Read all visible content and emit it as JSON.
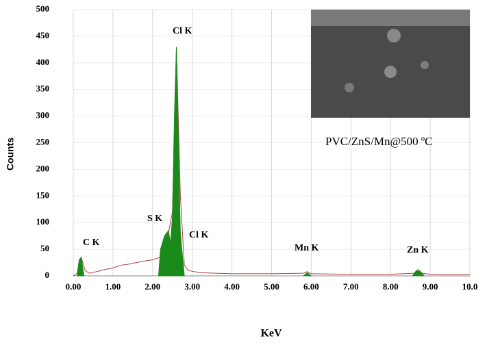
{
  "chart_data": {
    "type": "line",
    "x_label": "KeV",
    "y_label": "Counts",
    "annotations": [
      "Cl  K",
      "S  K",
      "Cl  K",
      "C  K",
      "Mn K",
      "Zn  K",
      "PVC/ZnS/Mn@500 ºC"
    ],
    "xlim": [
      0,
      10
    ],
    "ylim": [
      0,
      500
    ],
    "xticks": [
      {
        "value": 0,
        "label": "0.00"
      },
      {
        "value": 1,
        "label": "1.00"
      },
      {
        "value": 2,
        "label": "2.00"
      },
      {
        "value": 3,
        "label": "3.00"
      },
      {
        "value": 4,
        "label": "4.00"
      },
      {
        "value": 5,
        "label": "5.00"
      },
      {
        "value": 6,
        "label": "6.00"
      },
      {
        "value": 7,
        "label": "7.00"
      },
      {
        "value": 8,
        "label": "8.00"
      },
      {
        "value": 9,
        "label": "9.00"
      },
      {
        "value": 10,
        "label": "10.0"
      }
    ],
    "yticks": [
      0,
      50,
      100,
      150,
      200,
      250,
      300,
      350,
      400,
      450,
      500
    ],
    "grid": true,
    "series": [
      {
        "color": "#b04040",
        "kind": "line",
        "x": [
          0,
          0.1,
          0.15,
          0.2,
          0.3,
          0.4,
          0.6,
          0.8,
          1.0,
          1.2,
          1.4,
          1.6,
          1.8,
          2.0,
          2.2,
          2.4,
          2.5,
          2.6,
          2.7,
          2.8,
          2.9,
          3.2,
          4.0,
          5.0,
          5.8,
          5.9,
          6.0,
          7.0,
          8.0,
          8.6,
          8.7,
          8.8,
          9.0,
          10.0
        ],
        "values": [
          0,
          5,
          30,
          35,
          10,
          5,
          8,
          12,
          15,
          20,
          22,
          25,
          28,
          30,
          35,
          80,
          120,
          430,
          150,
          20,
          10,
          6,
          4,
          4,
          5,
          8,
          4,
          3,
          3,
          5,
          12,
          5,
          3,
          2
        ]
      },
      {
        "color": "#1a8a1a",
        "kind": "area",
        "x": [
          0.1,
          0.15,
          0.2,
          0.27,
          1.0,
          2.15,
          2.2,
          2.3,
          2.4,
          2.45,
          2.5,
          2.55,
          2.6,
          2.65,
          2.7,
          2.8,
          4.0,
          5.8,
          5.9,
          6.0,
          7.0,
          8.55,
          8.65,
          8.75,
          8.85
        ],
        "values": [
          0,
          30,
          35,
          0,
          null,
          0,
          50,
          75,
          85,
          60,
          110,
          300,
          430,
          250,
          80,
          0,
          null,
          0,
          6,
          0,
          null,
          0,
          10,
          8,
          0
        ]
      }
    ]
  }
}
